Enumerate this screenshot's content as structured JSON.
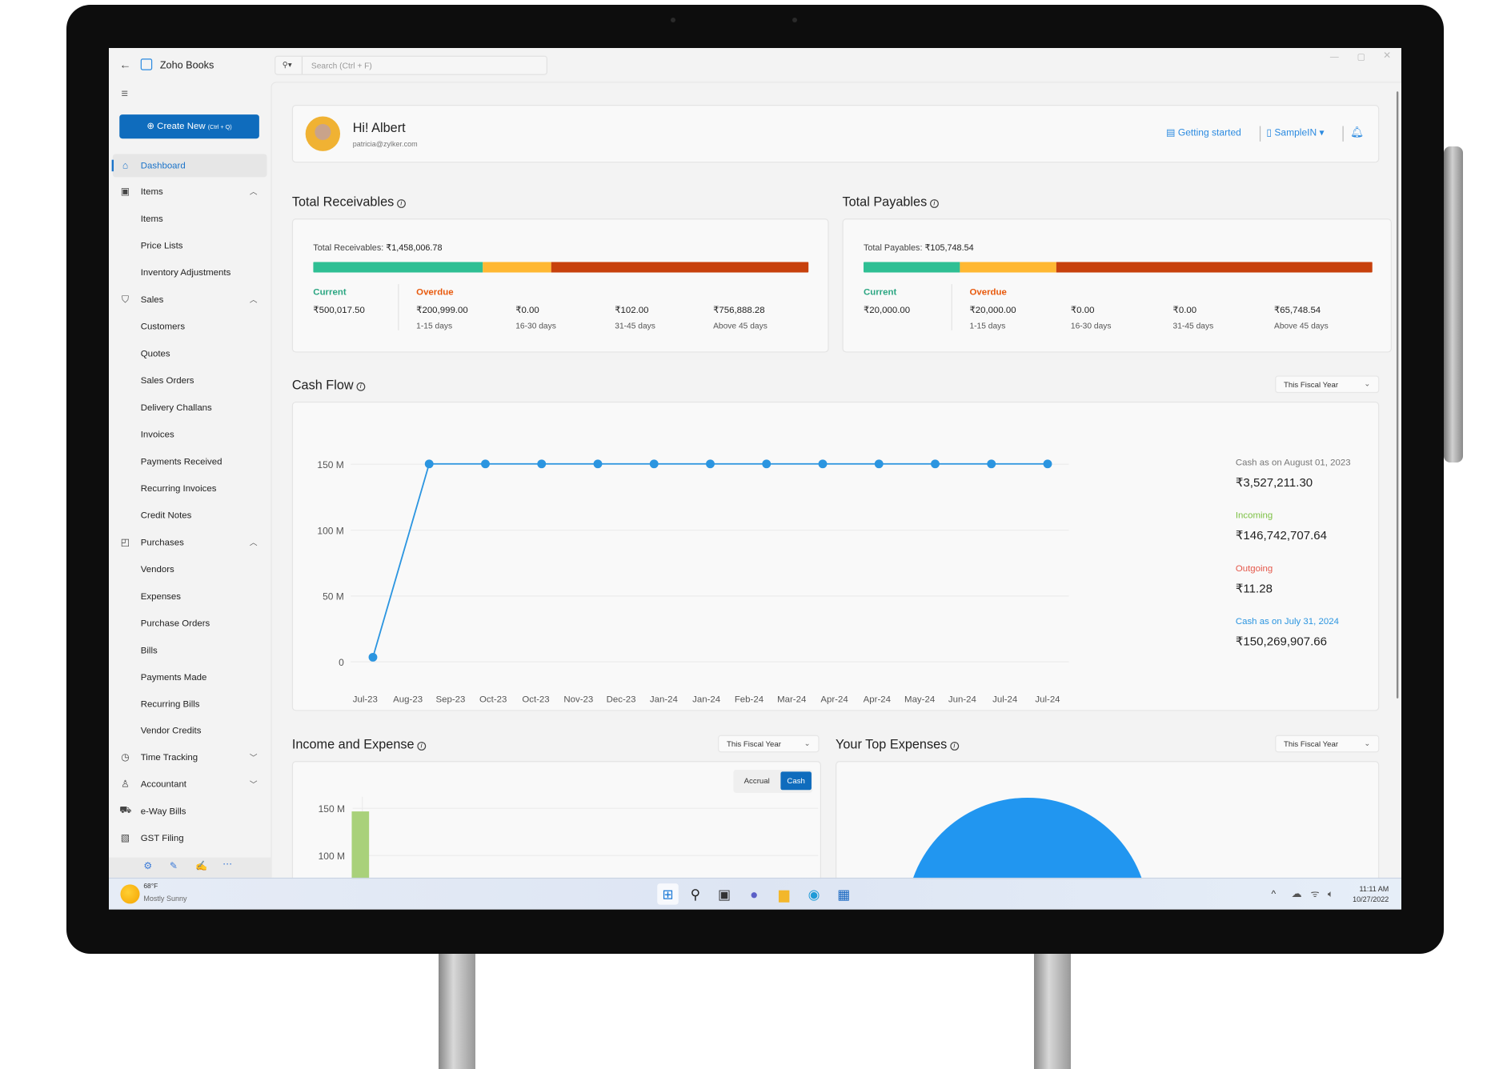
{
  "app": {
    "title": "Zoho Books",
    "search_placeholder": "Search  (Ctrl + F)",
    "create_new": "Create New",
    "create_new_shortcut": "(Ctrl + Q)"
  },
  "sidebar": {
    "items": [
      {
        "label": "Dashboard",
        "icon": "home-icon",
        "level": 0,
        "active": true
      },
      {
        "label": "Items",
        "icon": "items-icon",
        "level": 0,
        "chevron": "up"
      },
      {
        "label": "Items",
        "level": 1
      },
      {
        "label": "Price Lists",
        "level": 1
      },
      {
        "label": "Inventory Adjustments",
        "level": 1
      },
      {
        "label": "Sales",
        "icon": "cart-icon",
        "level": 0,
        "chevron": "up"
      },
      {
        "label": "Customers",
        "level": 1
      },
      {
        "label": "Quotes",
        "level": 1
      },
      {
        "label": "Sales Orders",
        "level": 1
      },
      {
        "label": "Delivery Challans",
        "level": 1
      },
      {
        "label": "Invoices",
        "level": 1
      },
      {
        "label": "Payments Received",
        "level": 1
      },
      {
        "label": "Recurring Invoices",
        "level": 1
      },
      {
        "label": "Credit Notes",
        "level": 1
      },
      {
        "label": "Purchases",
        "icon": "bag-icon",
        "level": 0,
        "chevron": "up"
      },
      {
        "label": "Vendors",
        "level": 1
      },
      {
        "label": "Expenses",
        "level": 1
      },
      {
        "label": "Purchase Orders",
        "level": 1
      },
      {
        "label": "Bills",
        "level": 1
      },
      {
        "label": "Payments Made",
        "level": 1
      },
      {
        "label": "Recurring Bills",
        "level": 1
      },
      {
        "label": "Vendor Credits",
        "level": 1
      },
      {
        "label": "Time Tracking",
        "icon": "stopwatch-icon",
        "level": 0,
        "chevron": "down"
      },
      {
        "label": "Accountant",
        "icon": "accountant-icon",
        "level": 0,
        "chevron": "down"
      },
      {
        "label": "e-Way Bills",
        "icon": "truck-icon",
        "level": 0
      },
      {
        "label": "GST Filing",
        "icon": "percent-doc-icon",
        "level": 0
      }
    ]
  },
  "header": {
    "greeting": "Hi! Albert",
    "email": "patricia@zylker.com",
    "getting_started": "Getting started",
    "org": "SampleIN"
  },
  "receivables": {
    "title": "Total Receivables",
    "total_label": "Total Receivables:",
    "total": "₹1,458,006.78",
    "current_label": "Current",
    "overdue_label": "Overdue",
    "current": "₹500,017.50",
    "overdue": [
      {
        "value": "₹200,999.00",
        "range": "1-15 days"
      },
      {
        "value": "₹0.00",
        "range": "16-30 days"
      },
      {
        "value": "₹102.00",
        "range": "31-45 days"
      },
      {
        "value": "₹756,888.28",
        "range": "Above 45 days"
      }
    ],
    "bar_fraction": {
      "current": 0.343,
      "overdue_1_15": 0.138,
      "rest": 0.519
    }
  },
  "payables": {
    "title": "Total Payables",
    "total_label": "Total Payables:",
    "total": "₹105,748.54",
    "current_label": "Current",
    "overdue_label": "Overdue",
    "current": "₹20,000.00",
    "overdue": [
      {
        "value": "₹20,000.00",
        "range": "1-15 days"
      },
      {
        "value": "₹0.00",
        "range": "16-30 days"
      },
      {
        "value": "₹0.00",
        "range": "31-45 days"
      },
      {
        "value": "₹65,748.54",
        "range": "Above 45 days"
      }
    ],
    "bar_fraction": {
      "current": 0.189,
      "overdue_1_15": 0.189,
      "rest": 0.622
    }
  },
  "colors": {
    "current": "#2fbf94",
    "overdue_1_15": "#ffb833",
    "overdue_rest": "#c7410d",
    "accent": "#0f6cbd",
    "line": "#2b95e0",
    "bar_income": "#a9d17a",
    "pie": "#2196f0"
  },
  "cash_flow": {
    "title": "Cash Flow",
    "period": "This Fiscal Year",
    "opening_label": "Cash as on  August 01, 2023",
    "opening": "₹3,527,211.30",
    "incoming_label": "Incoming",
    "incoming": "₹146,742,707.64",
    "outgoing_label": "Outgoing",
    "outgoing": "₹11.28",
    "closing_label": "Cash as on  July 31, 2024",
    "closing": "₹150,269,907.66"
  },
  "income_expense": {
    "title": "Income and Expense",
    "period": "This Fiscal Year",
    "accrual": "Accrual",
    "cash": "Cash"
  },
  "top_expenses": {
    "title": "Your Top Expenses",
    "period": "This Fiscal Year"
  },
  "chart_data": [
    {
      "type": "line",
      "x_tick_labels": [
        "Jul-23",
        "Aug-23",
        "Sep-23",
        "Oct-23",
        "Oct-23",
        "Nov-23",
        "Dec-23",
        "Jan-24",
        "Jan-24",
        "Feb-24",
        "Mar-24",
        "Apr-24",
        "Apr-24",
        "May-24",
        "Jun-24",
        "Jul-24",
        "Jul-24"
      ],
      "values": [
        3.5,
        150.3,
        150.3,
        150.3,
        150.3,
        150.3,
        150.3,
        150.3,
        150.3,
        150.3,
        150.3,
        150.3,
        150.3
      ],
      "y_unit": "M",
      "y_ticks": [
        "0",
        "50 M",
        "100 M",
        "150 M"
      ],
      "ylim": [
        0,
        150
      ],
      "grid": true
    },
    {
      "type": "bar",
      "y_ticks": [
        "100 M",
        "150 M"
      ],
      "values": [
        146.7
      ],
      "visible_range": [
        100,
        150
      ]
    },
    {
      "type": "pie",
      "values": [
        100
      ]
    }
  ],
  "taskbar": {
    "temp": "68°F",
    "weather": "Mostly Sunny",
    "time": "11:11 AM",
    "date": "10/27/2022"
  }
}
